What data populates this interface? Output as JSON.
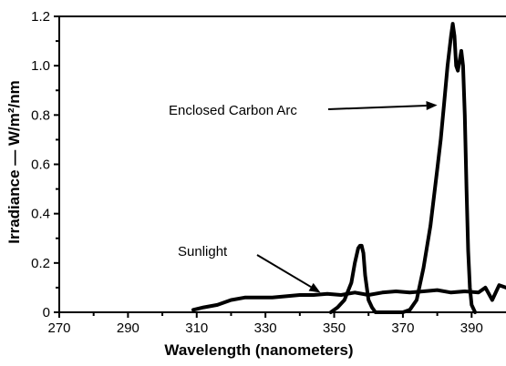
{
  "chart_data": {
    "type": "line",
    "xlabel": "Wavelength (nanometers)",
    "ylabel": "Irradiance — W/m²/nm",
    "xlim": [
      270,
      400
    ],
    "ylim": [
      0,
      1.2
    ],
    "x_ticks": [
      "270",
      "290",
      "310",
      "330",
      "350",
      "370",
      "390"
    ],
    "y_ticks": [
      "0",
      "0.2",
      "0.4",
      "0.6",
      "0.8",
      "1.0",
      "1.2"
    ],
    "grid": false,
    "annotations": [
      {
        "text": "Enclosed Carbon Arc",
        "target_x": 380,
        "target_y": 0.84
      },
      {
        "text": "Sunlight",
        "target_x": 346,
        "target_y": 0.08
      }
    ],
    "series": [
      {
        "name": "Sunlight",
        "x": [
          309,
          312,
          316,
          320,
          324,
          328,
          332,
          336,
          340,
          344,
          348,
          352,
          356,
          360,
          364,
          368,
          372,
          376,
          380,
          384,
          388,
          392,
          394,
          396,
          398,
          400
        ],
        "y": [
          0.01,
          0.02,
          0.03,
          0.05,
          0.06,
          0.06,
          0.06,
          0.065,
          0.07,
          0.07,
          0.075,
          0.07,
          0.08,
          0.07,
          0.08,
          0.085,
          0.08,
          0.085,
          0.09,
          0.08,
          0.085,
          0.08,
          0.1,
          0.05,
          0.11,
          0.1
        ]
      },
      {
        "name": "Enclosed Carbon Arc",
        "x": [
          349,
          351,
          353,
          355,
          356,
          357,
          357.5,
          358,
          358.5,
          359,
          360,
          361,
          362,
          366,
          370,
          372,
          374,
          376,
          378,
          380,
          381,
          382,
          383,
          384,
          384.5,
          385,
          385.5,
          386,
          386.5,
          387,
          387.5,
          388,
          388.5,
          389,
          389.5,
          390,
          391
        ],
        "y": [
          0.0,
          0.02,
          0.05,
          0.12,
          0.2,
          0.26,
          0.27,
          0.27,
          0.24,
          0.15,
          0.05,
          0.02,
          0.0,
          0.0,
          0.0,
          0.01,
          0.05,
          0.18,
          0.35,
          0.58,
          0.7,
          0.85,
          1.0,
          1.12,
          1.17,
          1.12,
          1.0,
          0.98,
          1.02,
          1.06,
          1.0,
          0.8,
          0.5,
          0.25,
          0.1,
          0.03,
          0.0
        ]
      }
    ]
  }
}
